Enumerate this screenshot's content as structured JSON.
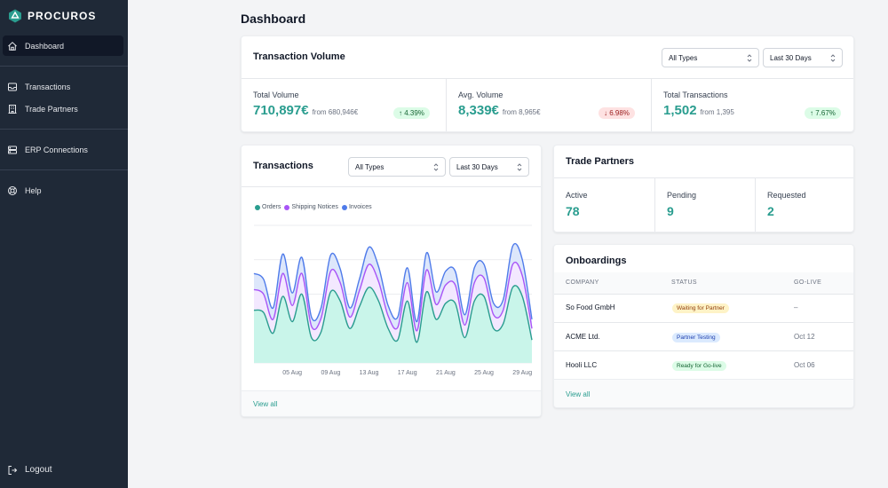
{
  "brand": {
    "name": "PROCUROS"
  },
  "sidebar": {
    "items": [
      {
        "label": "Dashboard",
        "icon": "home-icon",
        "active": true
      },
      {
        "label": "Transactions",
        "icon": "inbox-icon"
      },
      {
        "label": "Trade Partners",
        "icon": "building-icon"
      },
      {
        "label": "ERP Connections",
        "icon": "server-icon"
      },
      {
        "label": "Help",
        "icon": "lifebuoy-icon"
      }
    ],
    "logout": {
      "label": "Logout",
      "icon": "logout-icon"
    }
  },
  "page_title": "Dashboard",
  "volume": {
    "title": "Transaction Volume",
    "type_select": "All Types",
    "range_select": "Last 30 Days",
    "stats": [
      {
        "label": "Total Volume",
        "value": "710,897€",
        "from": "from 680,946€",
        "change": "4.39%",
        "direction": "up"
      },
      {
        "label": "Avg. Volume",
        "value": "8,339€",
        "from": "from 8,965€",
        "change": "6.98%",
        "direction": "down"
      },
      {
        "label": "Total Transactions",
        "value": "1,502",
        "from": "from 1,395",
        "change": "7.67%",
        "direction": "up"
      }
    ]
  },
  "transactions": {
    "title": "Transactions",
    "type_select": "All Types",
    "range_select": "Last 30 Days",
    "view_all": "View all"
  },
  "chart_data": {
    "type": "area",
    "stacked": true,
    "x": [
      "01 Aug",
      "02 Aug",
      "03 Aug",
      "04 Aug",
      "05 Aug",
      "06 Aug",
      "07 Aug",
      "08 Aug",
      "09 Aug",
      "10 Aug",
      "11 Aug",
      "12 Aug",
      "13 Aug",
      "14 Aug",
      "15 Aug",
      "16 Aug",
      "17 Aug",
      "18 Aug",
      "19 Aug",
      "20 Aug",
      "21 Aug",
      "22 Aug",
      "23 Aug",
      "24 Aug",
      "25 Aug",
      "26 Aug",
      "27 Aug",
      "28 Aug",
      "29 Aug",
      "30 Aug"
    ],
    "tick_labels": [
      "05 Aug",
      "09 Aug",
      "13 Aug",
      "17 Aug",
      "21 Aug",
      "25 Aug",
      "29 Aug"
    ],
    "series": [
      {
        "name": "Orders",
        "color": "#2a9d8f",
        "fill": "#c9f5ea",
        "values": [
          46,
          44,
          26,
          58,
          36,
          60,
          22,
          27,
          62,
          54,
          30,
          49,
          66,
          54,
          30,
          20,
          54,
          18,
          62,
          38,
          52,
          52,
          22,
          54,
          58,
          30,
          34,
          66,
          58,
          20
        ]
      },
      {
        "name": "Shipping Notices",
        "color": "#a855f7",
        "fill": "#f3e8ff",
        "values": [
          18,
          16,
          12,
          20,
          14,
          18,
          10,
          12,
          18,
          16,
          10,
          14,
          20,
          17,
          11,
          11,
          16,
          10,
          19,
          13,
          16,
          16,
          11,
          16,
          16,
          12,
          12,
          20,
          18,
          10
        ]
      },
      {
        "name": "Invoices",
        "color": "#4f7bea",
        "fill": "#dde7fb",
        "values": [
          14,
          13,
          10,
          17,
          11,
          14,
          8,
          9,
          14,
          12,
          8,
          10,
          15,
          13,
          9,
          9,
          13,
          8,
          15,
          11,
          12,
          12,
          9,
          13,
          12,
          10,
          9,
          16,
          14,
          8
        ]
      }
    ],
    "grid": true,
    "legend": "top-left"
  },
  "partners": {
    "title": "Trade Partners",
    "stats": [
      {
        "label": "Active",
        "value": "78"
      },
      {
        "label": "Pending",
        "value": "9"
      },
      {
        "label": "Requested",
        "value": "2"
      }
    ]
  },
  "onboardings": {
    "title": "Onboardings",
    "columns": [
      "COMPANY",
      "STATUS",
      "GO-LIVE"
    ],
    "rows": [
      {
        "company": "So Food GmbH",
        "status": "Waiting for Partner",
        "status_kind": "waiting",
        "golive": "–"
      },
      {
        "company": "ACME Ltd.",
        "status": "Partner Testing",
        "status_kind": "testing",
        "golive": "Oct 12"
      },
      {
        "company": "Hooli LLC",
        "status": "Ready for Go-live",
        "status_kind": "ready",
        "golive": "Oct 06"
      }
    ],
    "view_all": "View all"
  }
}
